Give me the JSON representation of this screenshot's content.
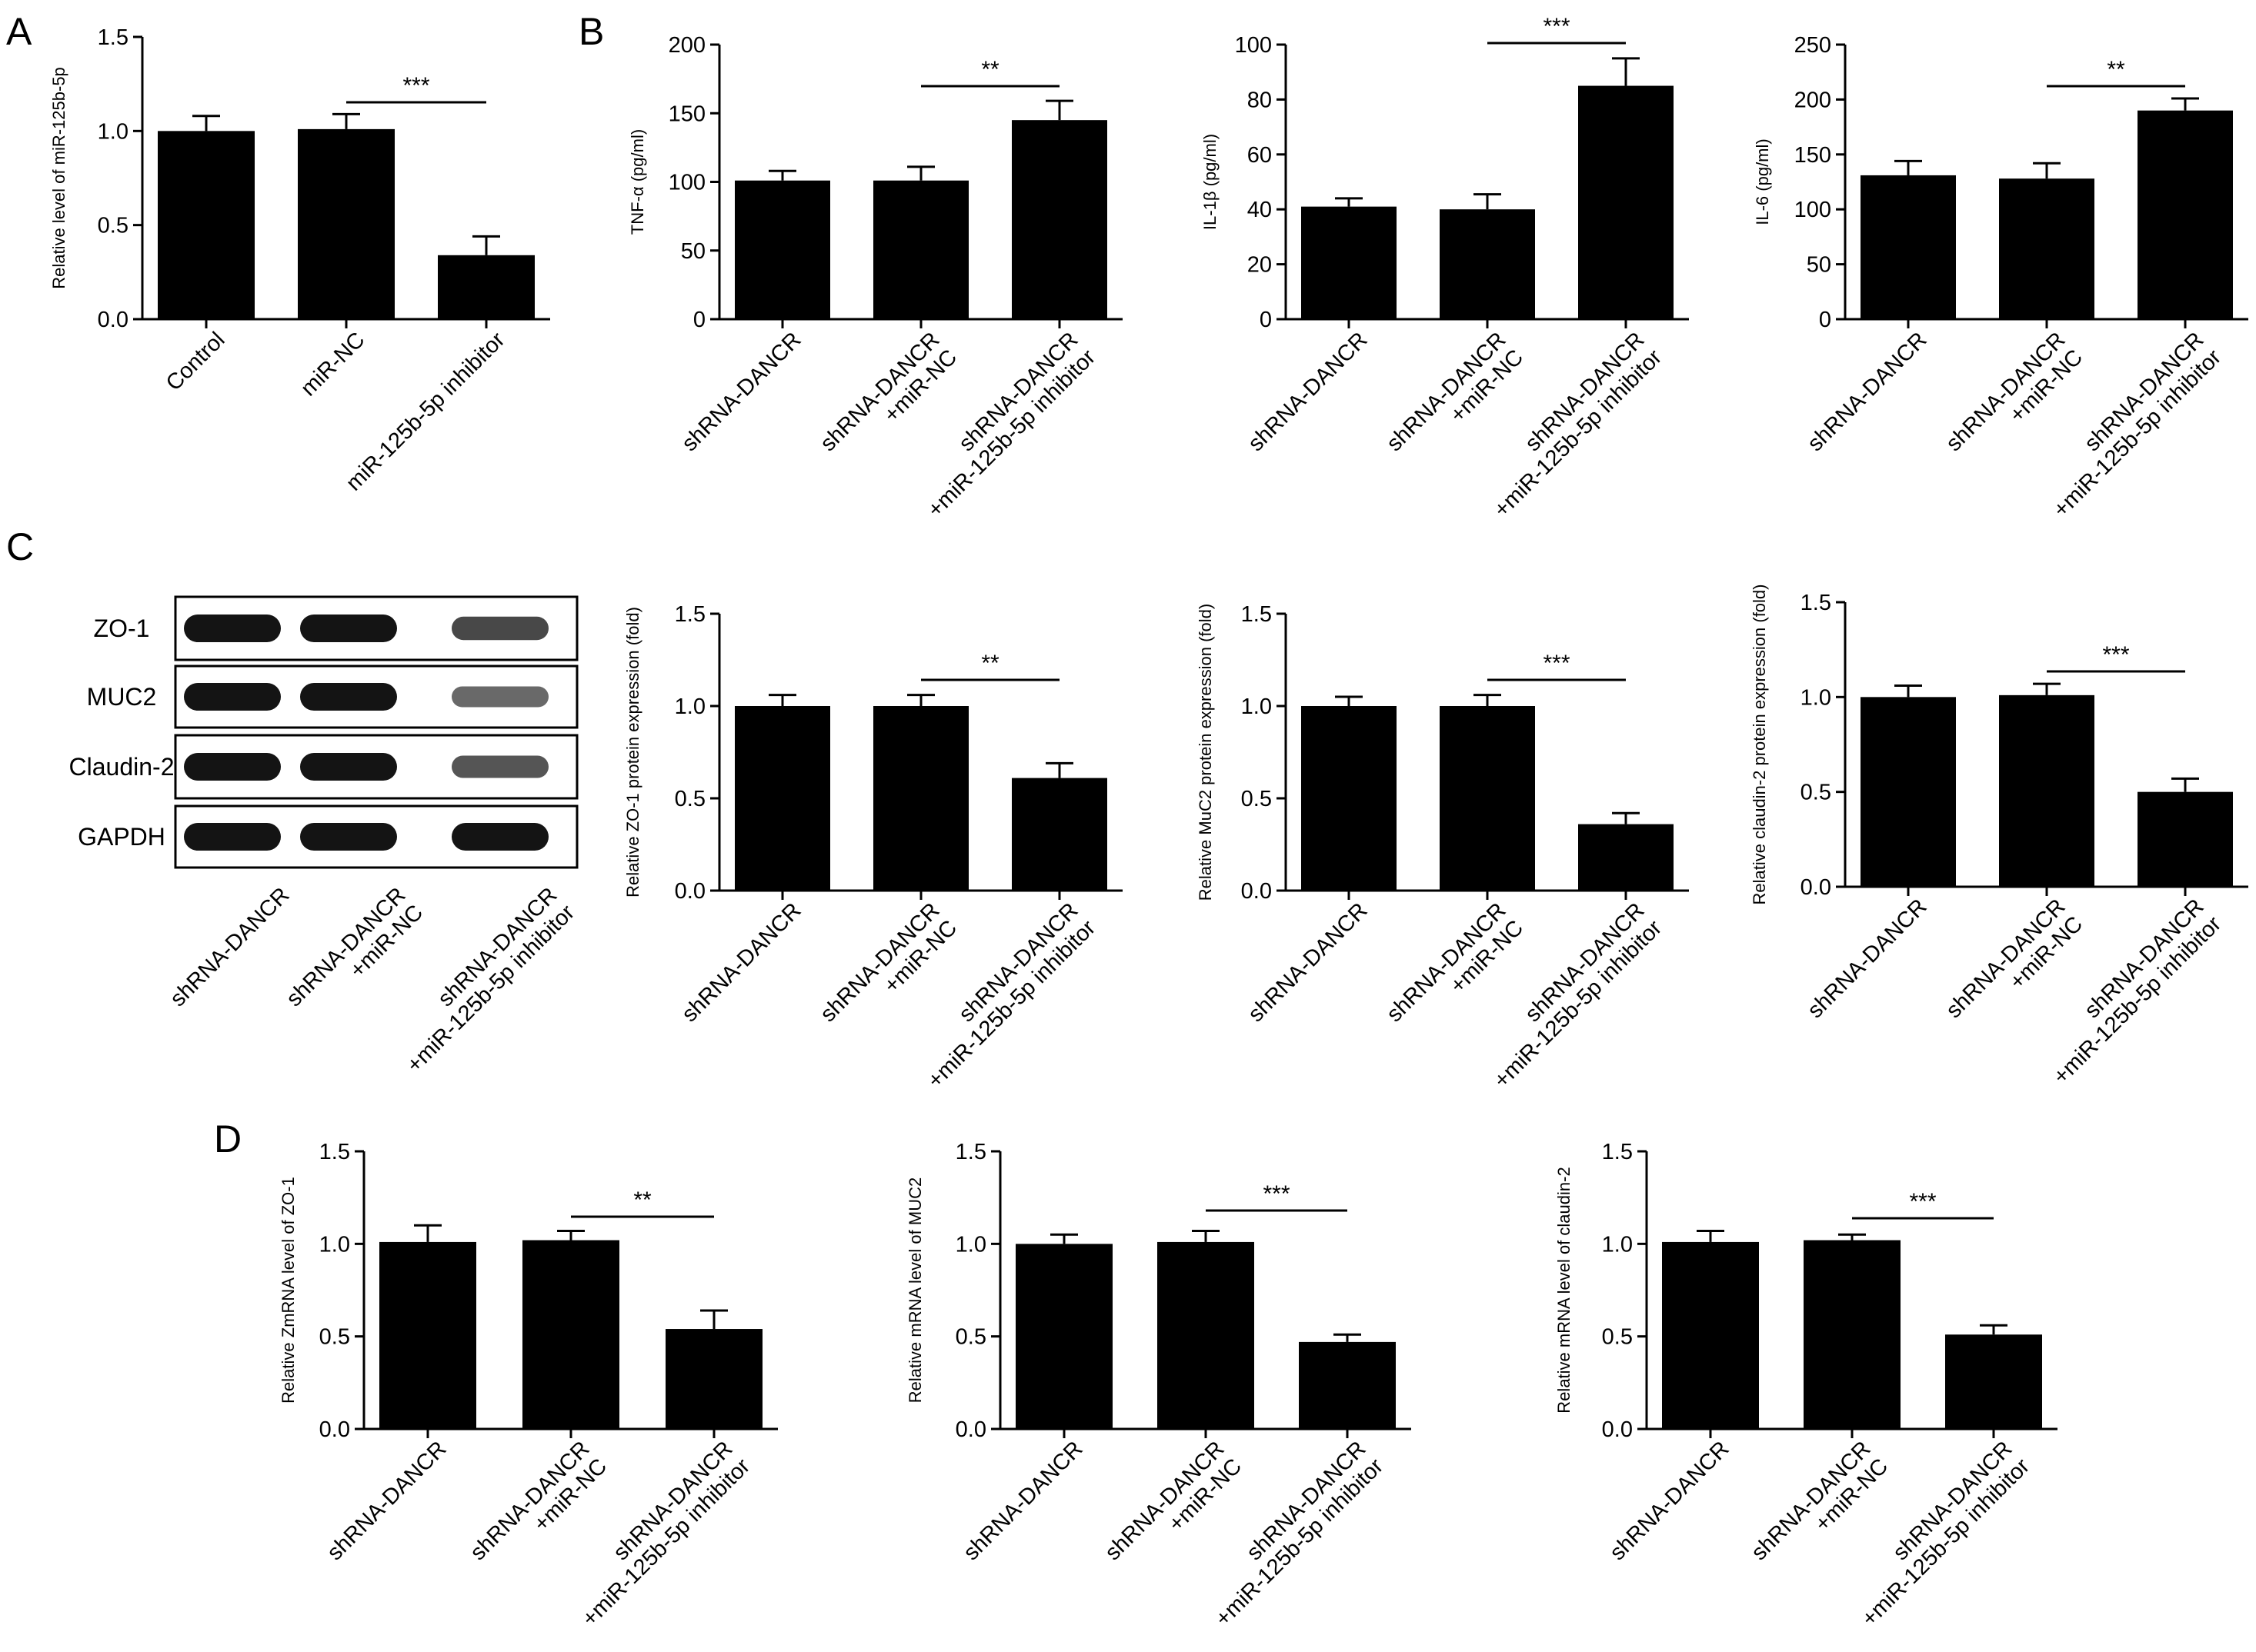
{
  "panel_letters": {
    "A": "A",
    "B": "B",
    "C": "C",
    "D": "D"
  },
  "colors": {
    "bar": "#000000",
    "axis": "#000000",
    "background": "#ffffff"
  },
  "western_blot": {
    "rows": [
      "ZO-1",
      "MUC2",
      "Claudin-2",
      "GAPDH"
    ],
    "lanes": [
      "shRNA-DANCR",
      "shRNA-DANCR\n+miR-NC",
      "shRNA-DANCR\n+miR-125b-5p inhibitor"
    ],
    "band_intensity": [
      [
        1.0,
        1.0,
        0.6
      ],
      [
        1.0,
        1.0,
        0.35
      ],
      [
        1.0,
        1.0,
        0.5
      ],
      [
        1.0,
        1.0,
        1.0
      ]
    ]
  },
  "chart_data": [
    {
      "panel": "A",
      "type": "bar",
      "ylabel": "Relative level of miR-125b-5p",
      "ylim": [
        0,
        1.5
      ],
      "yticks": [
        "0.0",
        "0.5",
        "1.0",
        "1.5"
      ],
      "categories": [
        "Control",
        "miR-NC",
        "miR-125b-5p inhibitor"
      ],
      "values": [
        1.0,
        1.01,
        0.34
      ],
      "errors": [
        0.08,
        0.08,
        0.1
      ],
      "significance": {
        "from": 1,
        "to": 2,
        "label": "***"
      }
    },
    {
      "panel": "B1",
      "type": "bar",
      "ylabel": "TNF-α (pg/ml)",
      "ylim": [
        0,
        200
      ],
      "yticks": [
        "0",
        "50",
        "100",
        "150",
        "200"
      ],
      "categories": [
        "shRNA-DANCR",
        "shRNA-DANCR\n+miR-NC",
        "shRNA-DANCR\n+miR-125b-5p inhibitor"
      ],
      "values": [
        101,
        101,
        145
      ],
      "errors": [
        7,
        10,
        14
      ],
      "significance": {
        "from": 1,
        "to": 2,
        "label": "**"
      }
    },
    {
      "panel": "B2",
      "type": "bar",
      "ylabel": "IL-1β (pg/ml)",
      "ylim": [
        0,
        100
      ],
      "yticks": [
        "0",
        "20",
        "40",
        "60",
        "80",
        "100"
      ],
      "categories": [
        "shRNA-DANCR",
        "shRNA-DANCR\n+miR-NC",
        "shRNA-DANCR\n+miR-125b-5p inhibitor"
      ],
      "values": [
        41,
        40,
        85
      ],
      "errors": [
        3,
        5.5,
        10
      ],
      "significance": {
        "from": 1,
        "to": 2,
        "label": "***"
      }
    },
    {
      "panel": "B3",
      "type": "bar",
      "ylabel": "IL-6 (pg/ml)",
      "ylim": [
        0,
        250
      ],
      "yticks": [
        "0",
        "50",
        "100",
        "150",
        "200",
        "250"
      ],
      "categories": [
        "shRNA-DANCR",
        "shRNA-DANCR\n+miR-NC",
        "shRNA-DANCR\n+miR-125b-5p inhibitor"
      ],
      "values": [
        131,
        128,
        190
      ],
      "errors": [
        13,
        14,
        11
      ],
      "significance": {
        "from": 1,
        "to": 2,
        "label": "**"
      }
    },
    {
      "panel": "C1",
      "type": "bar",
      "ylabel": "Relative ZO-1 protein expression (fold)",
      "ylim": [
        0,
        1.5
      ],
      "yticks": [
        "0.0",
        "0.5",
        "1.0",
        "1.5"
      ],
      "categories": [
        "shRNA-DANCR",
        "shRNA-DANCR\n+miR-NC",
        "shRNA-DANCR\n+miR-125b-5p inhibitor"
      ],
      "values": [
        1.0,
        1.0,
        0.61
      ],
      "errors": [
        0.06,
        0.06,
        0.08
      ],
      "significance": {
        "from": 1,
        "to": 2,
        "label": "**"
      }
    },
    {
      "panel": "C2",
      "type": "bar",
      "ylabel": "Relative MuC2 protein expression (fold)",
      "ylim": [
        0,
        1.5
      ],
      "yticks": [
        "0.0",
        "0.5",
        "1.0",
        "1.5"
      ],
      "categories": [
        "shRNA-DANCR",
        "shRNA-DANCR\n+miR-NC",
        "shRNA-DANCR\n+miR-125b-5p inhibitor"
      ],
      "values": [
        1.0,
        1.0,
        0.36
      ],
      "errors": [
        0.05,
        0.06,
        0.06
      ],
      "significance": {
        "from": 1,
        "to": 2,
        "label": "***"
      }
    },
    {
      "panel": "C3",
      "type": "bar",
      "ylabel": "Relative claudin-2 protein expression (fold)",
      "ylim": [
        0,
        1.5
      ],
      "yticks": [
        "0.0",
        "0.5",
        "1.0",
        "1.5"
      ],
      "categories": [
        "shRNA-DANCR",
        "shRNA-DANCR\n+miR-NC",
        "shRNA-DANCR\n+miR-125b-5p inhibitor"
      ],
      "values": [
        1.0,
        1.01,
        0.5
      ],
      "errors": [
        0.06,
        0.06,
        0.07
      ],
      "significance": {
        "from": 1,
        "to": 2,
        "label": "***"
      }
    },
    {
      "panel": "D1",
      "type": "bar",
      "ylabel": "Relative ZmRNA level of ZO-1",
      "ylim": [
        0,
        1.5
      ],
      "yticks": [
        "0.0",
        "0.5",
        "1.0",
        "1.5"
      ],
      "categories": [
        "shRNA-DANCR",
        "shRNA-DANCR\n+miR-NC",
        "shRNA-DANCR\n+miR-125b-5p inhibitor"
      ],
      "values": [
        1.01,
        1.02,
        0.54
      ],
      "errors": [
        0.09,
        0.05,
        0.1
      ],
      "significance": {
        "from": 1,
        "to": 2,
        "label": "**"
      }
    },
    {
      "panel": "D2",
      "type": "bar",
      "ylabel": "Relative mRNA level of MUC2",
      "ylim": [
        0,
        1.5
      ],
      "yticks": [
        "0.0",
        "0.5",
        "1.0",
        "1.5"
      ],
      "categories": [
        "shRNA-DANCR",
        "shRNA-DANCR\n+miR-NC",
        "shRNA-DANCR\n+miR-125b-5p inhibitor"
      ],
      "values": [
        1.0,
        1.01,
        0.47
      ],
      "errors": [
        0.05,
        0.06,
        0.04
      ],
      "significance": {
        "from": 1,
        "to": 2,
        "label": "***"
      }
    },
    {
      "panel": "D3",
      "type": "bar",
      "ylabel": "Relative mRNA level of claudin-2",
      "ylim": [
        0,
        1.5
      ],
      "yticks": [
        "0.0",
        "0.5",
        "1.0",
        "1.5"
      ],
      "categories": [
        "shRNA-DANCR",
        "shRNA-DANCR\n+miR-NC",
        "shRNA-DANCR\n+miR-125b-5p inhibitor"
      ],
      "values": [
        1.01,
        1.02,
        0.51
      ],
      "errors": [
        0.06,
        0.03,
        0.05
      ],
      "significance": {
        "from": 1,
        "to": 2,
        "label": "***"
      }
    }
  ]
}
